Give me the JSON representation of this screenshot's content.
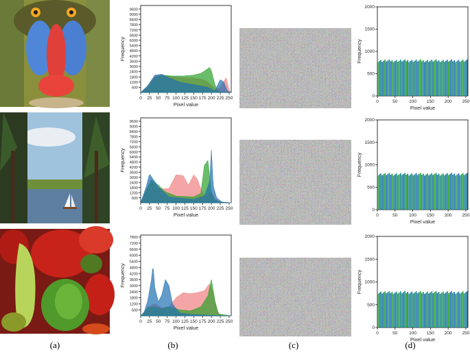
{
  "captions": [
    "(a)",
    "(b)",
    "(c)",
    "(d)"
  ],
  "colors": {
    "red": "#f08080",
    "green": "#2ca02c",
    "blue": "#1f6fb0",
    "teal": "#1f8a8a"
  },
  "images": [
    {
      "name": "mandrill",
      "label": "baboon face: blue cheeks, red nose"
    },
    {
      "name": "sailboat",
      "label": "lake, pine trees and sailboat"
    },
    {
      "name": "peppers",
      "label": "red and green bell peppers"
    }
  ],
  "chart_data": [
    {
      "type": "area",
      "panel": "b-1",
      "xlabel": "Pixel value",
      "ylabel": "Frequency",
      "xlim": [
        0,
        256
      ],
      "ylim": [
        0,
        10000
      ],
      "xticks": [
        0,
        25,
        50,
        75,
        100,
        125,
        150,
        175,
        200,
        225,
        250
      ],
      "yticks": [
        600,
        1200,
        1800,
        2400,
        3000,
        3600,
        4200,
        4800,
        5400,
        6000,
        6600,
        7200,
        7800,
        8400,
        9000,
        9600
      ],
      "series": [
        {
          "name": "R",
          "x": [
            0,
            20,
            40,
            60,
            90,
            120,
            150,
            175,
            190,
            200,
            215,
            225,
            235,
            242,
            250,
            256
          ],
          "values": [
            0,
            700,
            1900,
            2000,
            1800,
            1700,
            1650,
            1500,
            1200,
            800,
            300,
            600,
            1300,
            1700,
            300,
            0
          ]
        },
        {
          "name": "G",
          "x": [
            0,
            20,
            40,
            60,
            90,
            120,
            150,
            170,
            185,
            195,
            200,
            210,
            220,
            256
          ],
          "values": [
            0,
            600,
            1700,
            2000,
            1900,
            1900,
            2000,
            2200,
            2600,
            2900,
            2500,
            900,
            100,
            0
          ]
        },
        {
          "name": "B",
          "x": [
            0,
            20,
            40,
            60,
            80,
            110,
            150,
            190,
            210,
            225,
            235,
            245,
            256
          ],
          "values": [
            0,
            800,
            2000,
            2100,
            1700,
            1200,
            900,
            600,
            200,
            1500,
            1200,
            200,
            0
          ]
        }
      ]
    },
    {
      "type": "area",
      "panel": "b-2",
      "xlabel": "Pixel value",
      "ylabel": "Frequency",
      "xlim": [
        0,
        256
      ],
      "ylim": [
        0,
        10000
      ],
      "xticks": [
        0,
        25,
        50,
        75,
        100,
        125,
        150,
        175,
        200,
        225,
        250
      ],
      "yticks": [
        600,
        1200,
        1800,
        2400,
        3000,
        3600,
        4200,
        4800,
        5400,
        6000,
        6600,
        7200,
        7800,
        8400,
        9000,
        9600
      ],
      "series": [
        {
          "name": "R",
          "x": [
            0,
            15,
            30,
            50,
            80,
            100,
            120,
            135,
            150,
            160,
            175,
            185,
            200,
            210,
            225,
            256
          ],
          "values": [
            0,
            1400,
            2400,
            1600,
            1700,
            3300,
            3200,
            2100,
            3300,
            2800,
            1100,
            800,
            1300,
            500,
            100,
            0
          ]
        },
        {
          "name": "G",
          "x": [
            0,
            15,
            30,
            50,
            70,
            100,
            150,
            170,
            180,
            190,
            200,
            210,
            225,
            256
          ],
          "values": [
            0,
            1500,
            2700,
            2100,
            1300,
            800,
            700,
            1100,
            4400,
            5000,
            1200,
            300,
            100,
            0
          ]
        },
        {
          "name": "B",
          "x": [
            0,
            15,
            25,
            35,
            50,
            80,
            150,
            180,
            195,
            200,
            205,
            215,
            230,
            256
          ],
          "values": [
            0,
            1800,
            3400,
            2800,
            1900,
            700,
            400,
            800,
            2500,
            6200,
            2000,
            600,
            100,
            0
          ]
        }
      ]
    },
    {
      "type": "area",
      "panel": "b-3",
      "xlabel": "Pixel value",
      "ylabel": "Frequency",
      "xlim": [
        0,
        256
      ],
      "ylim": [
        0,
        8000
      ],
      "xticks": [
        0,
        25,
        50,
        75,
        100,
        125,
        150,
        175,
        200,
        225,
        250
      ],
      "yticks": [
        600,
        1200,
        1800,
        2400,
        3000,
        3600,
        4200,
        4800,
        5400,
        6000,
        6600,
        7200,
        7800
      ],
      "series": [
        {
          "name": "R",
          "x": [
            0,
            10,
            20,
            40,
            60,
            80,
            100,
            120,
            140,
            160,
            180,
            195,
            205,
            215,
            225,
            256
          ],
          "values": [
            0,
            300,
            900,
            1200,
            800,
            900,
            1800,
            2300,
            2200,
            2300,
            2500,
            3200,
            2300,
            600,
            100,
            0
          ]
        },
        {
          "name": "G",
          "x": [
            0,
            20,
            40,
            60,
            80,
            110,
            140,
            170,
            190,
            200,
            210,
            220,
            256
          ],
          "values": [
            0,
            800,
            900,
            700,
            900,
            600,
            500,
            900,
            2000,
            3600,
            1500,
            200,
            0
          ]
        },
        {
          "name": "B",
          "x": [
            0,
            10,
            20,
            30,
            35,
            40,
            50,
            60,
            70,
            80,
            90,
            110,
            140,
            200,
            256
          ],
          "values": [
            0,
            400,
            1500,
            3500,
            5000,
            2800,
            1400,
            2100,
            3600,
            3000,
            1200,
            300,
            150,
            50,
            0
          ]
        }
      ]
    },
    {
      "type": "bar",
      "panel": "d-1",
      "xlabel": "Pixel value",
      "ylabel": "Frequency",
      "xlim": [
        0,
        256
      ],
      "ylim": [
        0,
        2000
      ],
      "xticks": [
        0,
        50,
        100,
        150,
        200,
        250
      ],
      "yticks": [
        0,
        500,
        1000,
        1500,
        2000
      ],
      "level": 790,
      "bins": 64
    },
    {
      "type": "bar",
      "panel": "d-2",
      "xlabel": "Pixel value",
      "ylabel": "Frequency",
      "xlim": [
        0,
        256
      ],
      "ylim": [
        0,
        2000
      ],
      "xticks": [
        0,
        50,
        100,
        150,
        200,
        250
      ],
      "yticks": [
        0,
        500,
        1000,
        1500,
        2000
      ],
      "level": 790,
      "bins": 64
    },
    {
      "type": "bar",
      "panel": "d-3",
      "xlabel": "Pixel value",
      "ylabel": "Frequency",
      "xlim": [
        0,
        256
      ],
      "ylim": [
        0,
        2000
      ],
      "xticks": [
        0,
        50,
        100,
        150,
        200,
        250
      ],
      "yticks": [
        0,
        500,
        1000,
        1500,
        2000
      ],
      "level": 770,
      "bins": 64
    }
  ]
}
